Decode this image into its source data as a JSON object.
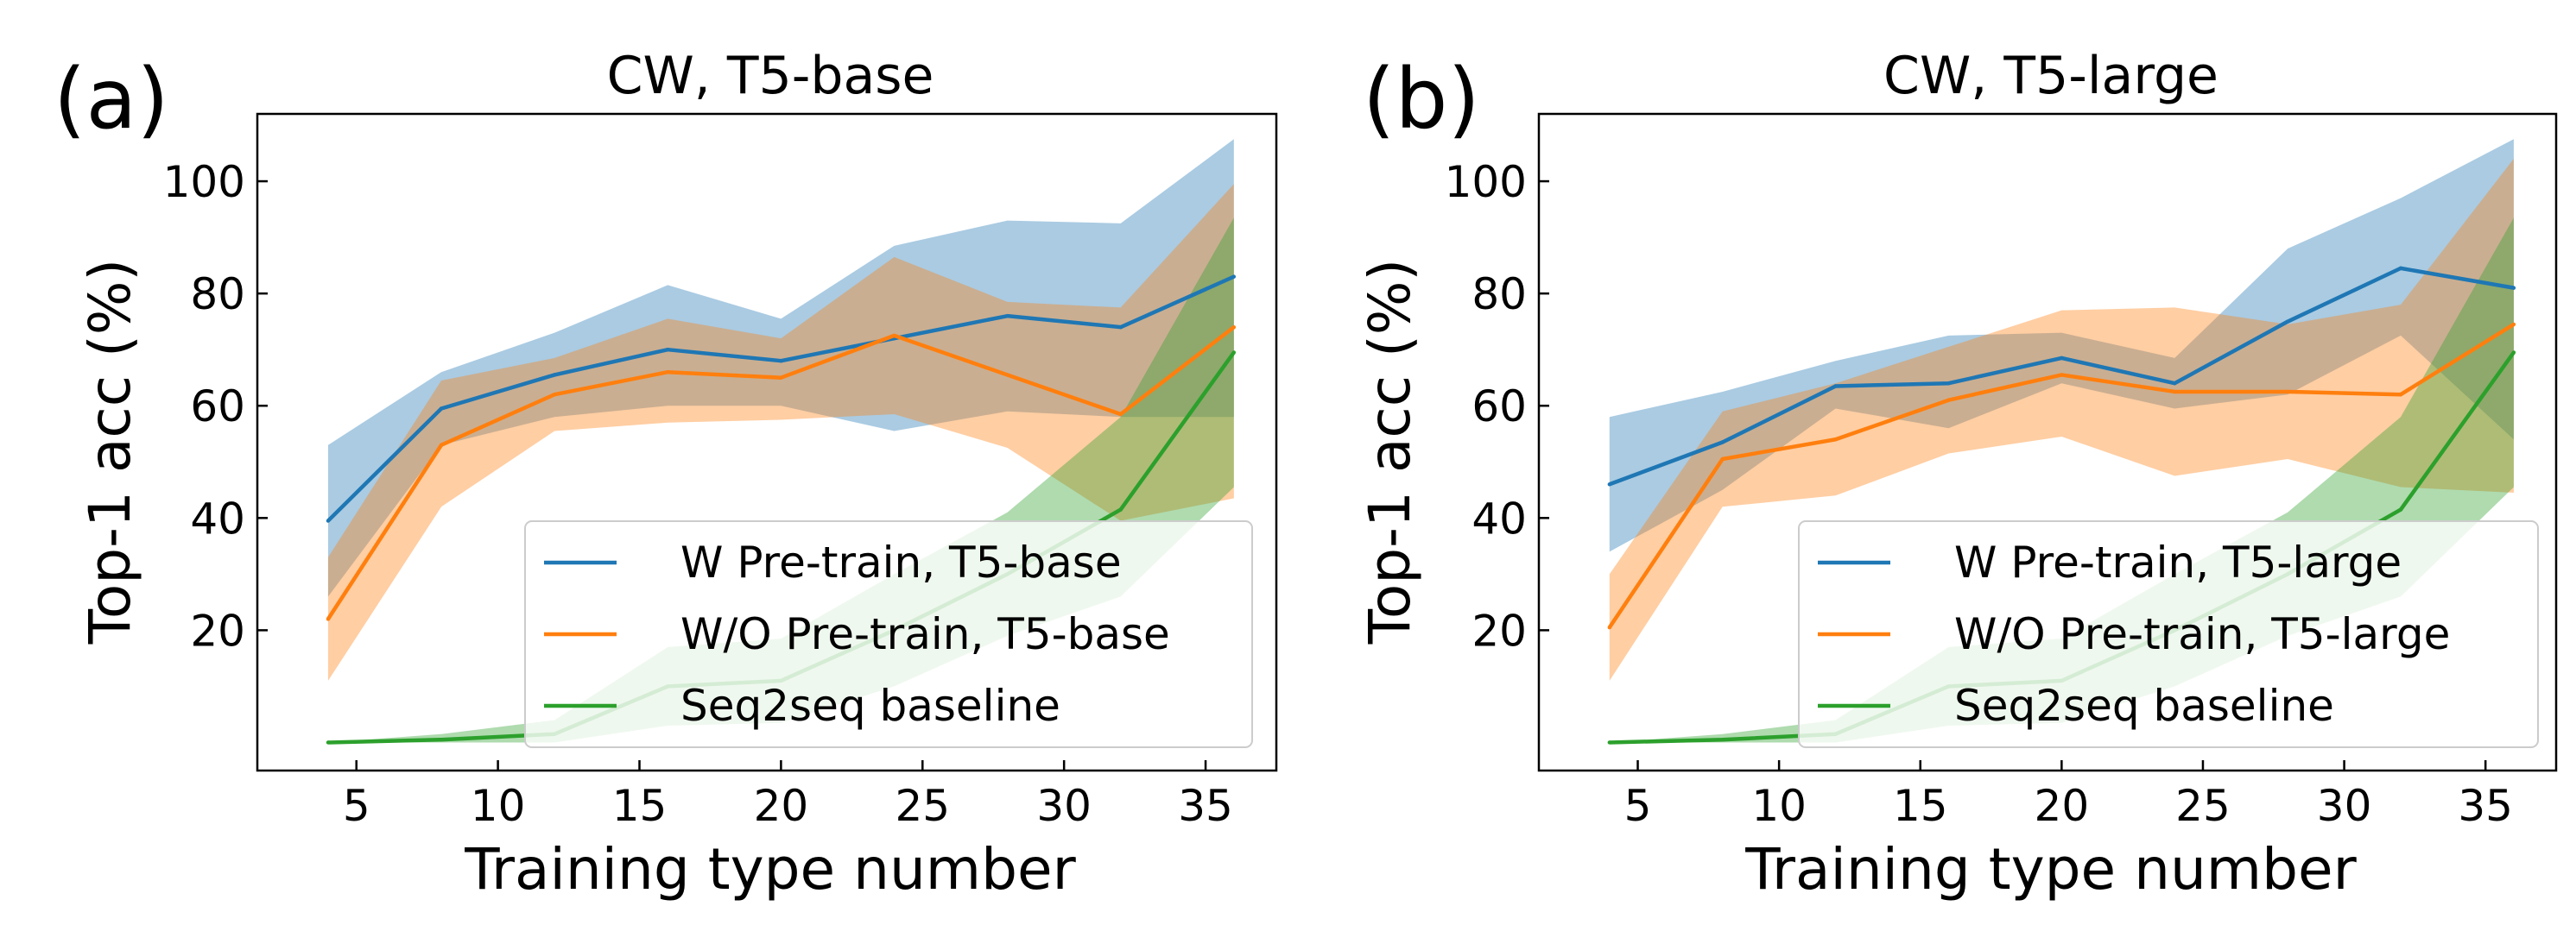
{
  "colors": {
    "blue": "#1f77b4",
    "orange": "#ff7f0e",
    "green": "#2ca02c"
  },
  "chart_data": [
    {
      "type": "line",
      "panel_label": "(a)",
      "title": "CW, T5-base",
      "xlabel": "Training type number",
      "ylabel": "Top-1 acc (%)",
      "xlim": [
        1.5,
        37.5
      ],
      "ylim": [
        -5,
        112
      ],
      "xticks": [
        5,
        10,
        15,
        20,
        25,
        30,
        35
      ],
      "yticks": [
        20,
        40,
        60,
        80,
        100
      ],
      "grid": false,
      "legend_position": "bottom-right",
      "series": [
        {
          "name": "W Pre-train, T5-base",
          "color": "blue",
          "x": [
            4,
            8,
            12,
            16,
            20,
            24,
            28,
            32,
            36
          ],
          "values": [
            39.5,
            59.5,
            65.5,
            70,
            68,
            72,
            76,
            74,
            83
          ],
          "lower": [
            26,
            53,
            58,
            60,
            60,
            55.5,
            59,
            58,
            58
          ],
          "upper": [
            53,
            66,
            73,
            81.5,
            75.5,
            88.5,
            93,
            92.5,
            107.5
          ]
        },
        {
          "name": "W/O Pre-train, T5-base",
          "color": "orange",
          "x": [
            4,
            8,
            12,
            16,
            20,
            24,
            28,
            32,
            36
          ],
          "values": [
            22,
            53,
            62,
            66,
            65,
            72.5,
            65.5,
            58.5,
            74
          ],
          "lower": [
            11,
            42,
            55.5,
            57,
            57.5,
            58.5,
            52.5,
            39.5,
            43.5
          ],
          "upper": [
            33,
            64.5,
            68.5,
            75.5,
            72,
            86.5,
            78.5,
            77.5,
            99.5
          ]
        },
        {
          "name": "Seq2seq baseline",
          "color": "green",
          "x": [
            4,
            8,
            12,
            16,
            20,
            24,
            28,
            32,
            36
          ],
          "values": [
            0,
            0.5,
            1.5,
            10,
            11,
            20,
            30,
            41.5,
            69.5
          ],
          "lower": [
            0,
            0,
            0,
            3,
            3.5,
            10,
            19,
            26,
            45.5
          ],
          "upper": [
            0,
            1.5,
            4,
            17,
            18.5,
            30,
            41,
            58,
            93.5
          ]
        }
      ]
    },
    {
      "type": "line",
      "panel_label": "(b)",
      "title": "CW, T5-large",
      "xlabel": "Training type number",
      "ylabel": "Top-1 acc (%)",
      "xlim": [
        1.5,
        37.5
      ],
      "ylim": [
        -5,
        112
      ],
      "xticks": [
        5,
        10,
        15,
        20,
        25,
        30,
        35
      ],
      "yticks": [
        20,
        40,
        60,
        80,
        100
      ],
      "grid": false,
      "legend_position": "bottom-right",
      "series": [
        {
          "name": "W Pre-train, T5-large",
          "color": "blue",
          "x": [
            4,
            8,
            12,
            16,
            20,
            24,
            28,
            32,
            36
          ],
          "values": [
            46,
            53.5,
            63.5,
            64,
            68.5,
            64,
            75,
            84.5,
            81
          ],
          "lower": [
            34,
            45,
            59.5,
            56,
            64,
            59.5,
            62,
            72.5,
            54
          ],
          "upper": [
            58,
            62.5,
            68,
            72.5,
            73,
            68.5,
            88,
            97,
            107.5
          ]
        },
        {
          "name": "W/O Pre-train, T5-large",
          "color": "orange",
          "x": [
            4,
            8,
            12,
            16,
            20,
            24,
            28,
            32,
            36
          ],
          "values": [
            20.5,
            50.5,
            54,
            61,
            65.5,
            62.5,
            62.5,
            62,
            74.5
          ],
          "lower": [
            11,
            42,
            44,
            51.5,
            54.5,
            47.5,
            50.5,
            45.5,
            44.5
          ],
          "upper": [
            30,
            59,
            64,
            70.5,
            77,
            77.5,
            74.5,
            78,
            104
          ]
        },
        {
          "name": "Seq2seq baseline",
          "color": "green",
          "x": [
            4,
            8,
            12,
            16,
            20,
            24,
            28,
            32,
            36
          ],
          "values": [
            0,
            0.5,
            1.5,
            10,
            11,
            20,
            30,
            41.5,
            69.5
          ],
          "lower": [
            0,
            0,
            0,
            3,
            3.5,
            10,
            19,
            26,
            45.5
          ],
          "upper": [
            0,
            1.5,
            4,
            17,
            18.5,
            30,
            41,
            58,
            93.5
          ]
        }
      ]
    }
  ]
}
